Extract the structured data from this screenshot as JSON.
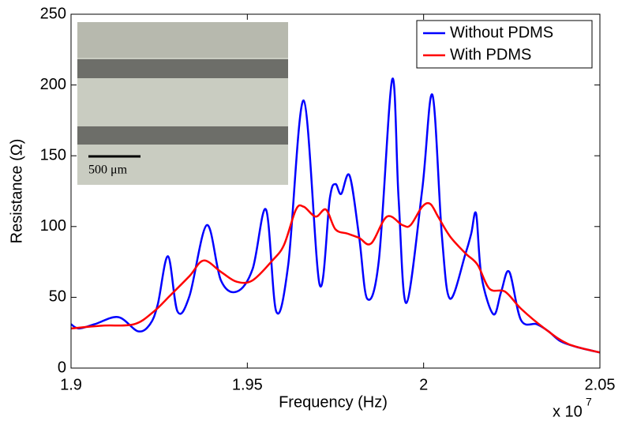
{
  "chart_data": {
    "type": "line",
    "xlabel": "Frequency (Hz)",
    "ylabel": "Resistance (Ω)",
    "x_multiplier": "x 10",
    "x_multiplier_exponent": "7",
    "inset_label": "500 μm",
    "xlim": [
      1.9,
      2.05
    ],
    "xticks": [
      1.9,
      1.95,
      {
        "value": 2,
        "label": "2"
      },
      2.05
    ],
    "ylim": [
      0,
      250
    ],
    "yticks": [
      0,
      50,
      100,
      150,
      200,
      250
    ],
    "legend": "northeast",
    "series": [
      {
        "name": "Without PDMS",
        "color": "#0000ff",
        "x": [
          1.9,
          1.9022,
          1.9067,
          1.9134,
          1.919,
          1.9224,
          1.9246,
          1.9275,
          1.9302,
          1.9336,
          1.9385,
          1.9425,
          1.947,
          1.9515,
          1.9553,
          1.9582,
          1.9616,
          1.966,
          1.9705,
          1.9734,
          1.975,
          1.9766,
          1.979,
          1.9817,
          1.984,
          1.9873,
          1.9911,
          1.9929,
          1.9951,
          1.9996,
          2.0025,
          2.0052,
          2.0075,
          2.0119,
          2.0135,
          2.0149,
          2.0164,
          2.0198,
          2.022,
          2.0243,
          2.0276,
          2.0321,
          2.0354,
          2.0388,
          2.0433,
          2.05
        ],
        "values": [
          31,
          28,
          31,
          36,
          26,
          31,
          45,
          79,
          40,
          51,
          101,
          62,
          54,
          70,
          112,
          40,
          73,
          189,
          59,
          120,
          130,
          123,
          136,
          93,
          49,
          76,
          204,
          120,
          46,
          126,
          193,
          93,
          49,
          81,
          95,
          109,
          65,
          38,
          54,
          68,
          34,
          31,
          26,
          19,
          15,
          11
        ]
      },
      {
        "name": "With PDMS",
        "color": "#ff0000",
        "x": [
          1.9,
          1.909,
          1.9179,
          1.9235,
          1.928,
          1.9336,
          1.9376,
          1.9425,
          1.947,
          1.9515,
          1.9571,
          1.9604,
          1.9638,
          1.966,
          1.9694,
          1.9723,
          1.975,
          1.9784,
          1.9817,
          1.9851,
          1.9896,
          1.994,
          1.9963,
          1.9996,
          2.0019,
          2.0041,
          2.0075,
          2.0119,
          2.0153,
          2.0187,
          2.0231,
          2.0276,
          2.0343,
          2.041,
          2.05
        ],
        "values": [
          28,
          30,
          31,
          40,
          51,
          65,
          76,
          68,
          61,
          62,
          76,
          87,
          112,
          114,
          107,
          112,
          98,
          95,
          92,
          88,
          107,
          101,
          101,
          114,
          116,
          107,
          93,
          81,
          73,
          56,
          54,
          42,
          28,
          17,
          11
        ]
      }
    ]
  }
}
